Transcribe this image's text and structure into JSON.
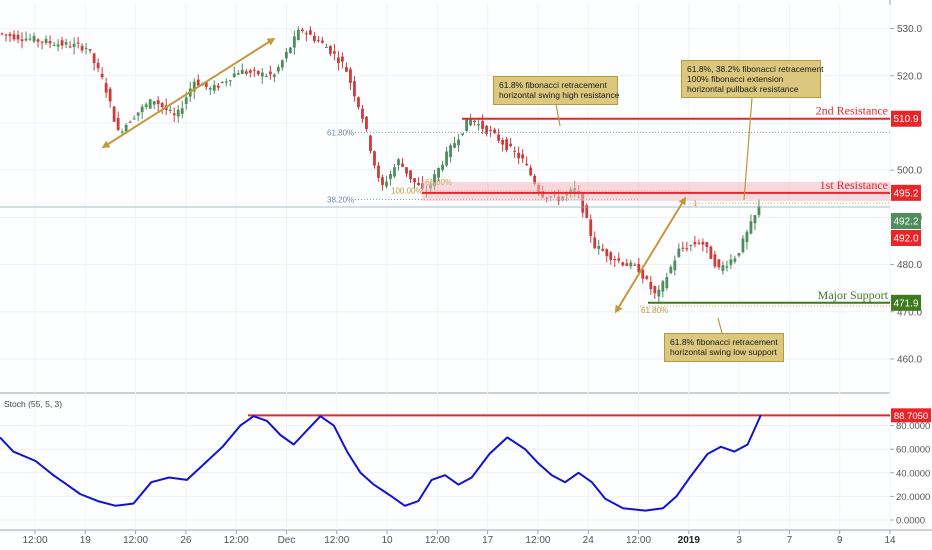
{
  "chart_data": [
    {
      "type": "candlestick",
      "title": "",
      "y_axis": {
        "range": [
          453,
          535
        ],
        "ticks": [
          460.0,
          470.0,
          480.0,
          490.0,
          500.0,
          510.0,
          520.0,
          530.0
        ],
        "tick_labels": [
          "460.0",
          "470.0",
          "480.0",
          "490.0",
          "500.0",
          "510.0",
          "520.0",
          "530.0"
        ],
        "position": "right"
      },
      "x_axis": {
        "tick_labels": [
          "12:00",
          "19",
          "12:00",
          "26",
          "12:00",
          "Dec",
          "12:00",
          "10",
          "12:00",
          "17",
          "12:00",
          "24",
          "12:00",
          "2019",
          "3",
          "7",
          "9",
          "14"
        ]
      },
      "price_path": [
        [
          0,
          529
        ],
        [
          0.03,
          528
        ],
        [
          0.06,
          527
        ],
        [
          0.1,
          526
        ],
        [
          0.12,
          518
        ],
        [
          0.135,
          508
        ],
        [
          0.155,
          512
        ],
        [
          0.175,
          515
        ],
        [
          0.2,
          511
        ],
        [
          0.22,
          519
        ],
        [
          0.24,
          517
        ],
        [
          0.27,
          521
        ],
        [
          0.31,
          520
        ],
        [
          0.34,
          530
        ],
        [
          0.37,
          526
        ],
        [
          0.39,
          522
        ],
        [
          0.41,
          511
        ],
        [
          0.43,
          496
        ],
        [
          0.45,
          502
        ],
        [
          0.465,
          498
        ],
        [
          0.48,
          495
        ],
        [
          0.5,
          502
        ],
        [
          0.53,
          511
        ],
        [
          0.56,
          507
        ],
        [
          0.59,
          502
        ],
        [
          0.61,
          495
        ],
        [
          0.63,
          494
        ],
        [
          0.65,
          496
        ],
        [
          0.67,
          484
        ],
        [
          0.695,
          481
        ],
        [
          0.72,
          479
        ],
        [
          0.74,
          473
        ],
        [
          0.765,
          483
        ],
        [
          0.79,
          485
        ],
        [
          0.81,
          479
        ],
        [
          0.83,
          482
        ],
        [
          0.855,
          492
        ]
      ],
      "stochastic_series": {
        "name": "Stoch (55, 5, 3)",
        "y_range": [
          0,
          100
        ],
        "tick_labels": [
          "0.0000",
          "20.0000",
          "40.0000",
          "60.0000",
          "80.0000"
        ],
        "ticks": [
          0,
          20,
          40,
          60,
          80
        ],
        "last_value_label": "88.7050",
        "resistance_level": 88.705,
        "path": [
          [
            0,
            70
          ],
          [
            0.015,
            58
          ],
          [
            0.04,
            50
          ],
          [
            0.06,
            38
          ],
          [
            0.075,
            30
          ],
          [
            0.09,
            22
          ],
          [
            0.11,
            16
          ],
          [
            0.13,
            12
          ],
          [
            0.15,
            14
          ],
          [
            0.17,
            32
          ],
          [
            0.19,
            36
          ],
          [
            0.21,
            34
          ],
          [
            0.23,
            48
          ],
          [
            0.25,
            62
          ],
          [
            0.27,
            80
          ],
          [
            0.285,
            88
          ],
          [
            0.3,
            84
          ],
          [
            0.315,
            72
          ],
          [
            0.33,
            64
          ],
          [
            0.345,
            76
          ],
          [
            0.36,
            88
          ],
          [
            0.375,
            80
          ],
          [
            0.39,
            58
          ],
          [
            0.405,
            40
          ],
          [
            0.42,
            30
          ],
          [
            0.44,
            20
          ],
          [
            0.455,
            12
          ],
          [
            0.47,
            16
          ],
          [
            0.485,
            34
          ],
          [
            0.5,
            38
          ],
          [
            0.515,
            30
          ],
          [
            0.53,
            36
          ],
          [
            0.55,
            56
          ],
          [
            0.57,
            70
          ],
          [
            0.59,
            60
          ],
          [
            0.605,
            48
          ],
          [
            0.62,
            38
          ],
          [
            0.635,
            32
          ],
          [
            0.65,
            40
          ],
          [
            0.665,
            32
          ],
          [
            0.68,
            18
          ],
          [
            0.7,
            10
          ],
          [
            0.725,
            8
          ],
          [
            0.745,
            10
          ],
          [
            0.76,
            20
          ],
          [
            0.775,
            36
          ],
          [
            0.795,
            56
          ],
          [
            0.81,
            62
          ],
          [
            0.825,
            58
          ],
          [
            0.84,
            64
          ],
          [
            0.855,
            89
          ]
        ]
      },
      "horizontal_levels": [
        {
          "label": "2nd Resistance",
          "value": 510.9,
          "value_label": "510.9",
          "color": "#e8262a"
        },
        {
          "label": "1st Resistance",
          "value": 495.2,
          "value_label": "495.2",
          "color": "#e8262a"
        },
        {
          "label": "Major Support",
          "value": 471.9,
          "value_label": "471.9",
          "color": "#3f7a1f"
        }
      ],
      "price_badges": [
        {
          "value_label": "492.2",
          "value": 492.2,
          "color": "#4f8d5c"
        },
        {
          "value_label": "492.0",
          "value": 492.0,
          "color": "#e8262a"
        }
      ],
      "fib_labels": [
        "61.80%",
        "38.20%",
        "100.00%",
        "61.80%",
        "61.80%",
        "1"
      ],
      "annotations": [
        "61.8% fibonacci retracement\nhorizontal swing high resistance",
        "61.8%, 38.2% fibonacci retracement\n100% fibonacci extension\nhorizontal pullback resistance",
        "61.8% fibonacci retracement\nhorizontal swing low support"
      ],
      "colors": {
        "up": "#4f8d5c",
        "down": "#cf3b3b",
        "stoch": "#1212d6",
        "arrow": "#c39a3a",
        "resistance": "#e8262a",
        "support": "#3f7a1f"
      }
    }
  ]
}
